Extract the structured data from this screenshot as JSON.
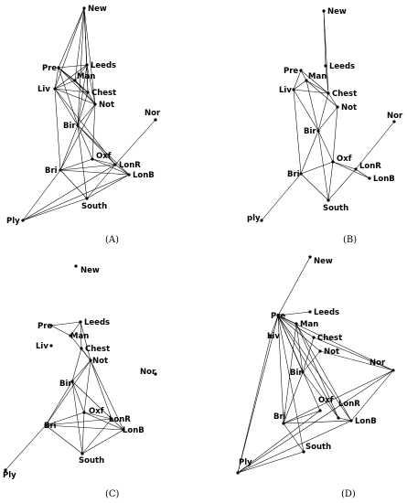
{
  "panels": [
    {
      "id": "A",
      "label": "(A)",
      "nodes": {
        "New": [
          "New"
        ],
        "Leeds": [
          "Leeds"
        ],
        "Pre": [
          "Pre"
        ],
        "Man": [
          "Man"
        ],
        "Liv": [
          "Liv"
        ],
        "Chest": [
          "Chest"
        ],
        "Not": [
          "Not"
        ],
        "Bir": [
          "Bir"
        ],
        "Nor": [
          "Nor"
        ],
        "Oxf": [
          "Oxf"
        ],
        "LonR": [
          "LonR"
        ],
        "LonB": [
          "LonB"
        ],
        "Bri": [
          "Bri"
        ],
        "South": [
          "South"
        ],
        "Ply": [
          "Ply"
        ]
      },
      "edges": [
        [
          "New",
          "Pre"
        ],
        [
          "New",
          "Leeds"
        ],
        [
          "New",
          "Liv"
        ],
        [
          "New",
          "Man"
        ],
        [
          "New",
          "Chest"
        ],
        [
          "New",
          "Not"
        ],
        [
          "New",
          "Bir"
        ],
        [
          "Pre",
          "Leeds"
        ],
        [
          "Pre",
          "Man"
        ],
        [
          "Pre",
          "Liv"
        ],
        [
          "Pre",
          "Chest"
        ],
        [
          "Pre",
          "Not"
        ],
        [
          "Pre",
          "Bir"
        ],
        [
          "Leeds",
          "Man"
        ],
        [
          "Leeds",
          "Liv"
        ],
        [
          "Leeds",
          "Not"
        ],
        [
          "Leeds",
          "Bir"
        ],
        [
          "Leeds",
          "Chest"
        ],
        [
          "Liv",
          "Man"
        ],
        [
          "Liv",
          "Chest"
        ],
        [
          "Liv",
          "Not"
        ],
        [
          "Liv",
          "Bir"
        ],
        [
          "Liv",
          "Bri"
        ],
        [
          "Liv",
          "LonR"
        ],
        [
          "Man",
          "Chest"
        ],
        [
          "Man",
          "Not"
        ],
        [
          "Chest",
          "Not"
        ],
        [
          "Chest",
          "Bir"
        ],
        [
          "Not",
          "Bir"
        ],
        [
          "Not",
          "Bri"
        ],
        [
          "Not",
          "Oxf"
        ],
        [
          "Bir",
          "Bri"
        ],
        [
          "Bir",
          "Oxf"
        ],
        [
          "Bir",
          "LonR"
        ],
        [
          "Bir",
          "LonB"
        ],
        [
          "Bir",
          "South"
        ],
        [
          "Bri",
          "Oxf"
        ],
        [
          "Bri",
          "LonR"
        ],
        [
          "Bri",
          "LonB"
        ],
        [
          "Bri",
          "South"
        ],
        [
          "Bri",
          "Ply"
        ],
        [
          "Oxf",
          "LonR"
        ],
        [
          "Oxf",
          "LonB"
        ],
        [
          "LonR",
          "LonB"
        ],
        [
          "LonR",
          "Nor"
        ],
        [
          "LonR",
          "South"
        ],
        [
          "LonB",
          "South"
        ],
        [
          "Ply",
          "South"
        ],
        [
          "Ply",
          "LonR"
        ],
        [
          "Ply",
          "LonB"
        ]
      ]
    },
    {
      "id": "B",
      "label": "(B)",
      "nodes": {
        "New": [
          "New"
        ],
        "Leeds": [
          "Leeds"
        ],
        "Pre": [
          "Pre"
        ],
        "Man": [
          "Man"
        ],
        "Liv": [
          "Liv"
        ],
        "Chest": [
          "Chest"
        ],
        "Not": [
          "Not"
        ],
        "Bir": [
          "Bir"
        ],
        "Nor": [
          "Nor"
        ],
        "Oxf": [
          "Oxf"
        ],
        "LonR": [
          "LonR"
        ],
        "LonB": [
          "LonB"
        ],
        "Bri": [
          "Bri"
        ],
        "South": [
          "South"
        ],
        "Ply": [
          "ply"
        ]
      },
      "edges": [
        [
          "New",
          "Leeds"
        ],
        [
          "New",
          "Chest"
        ],
        [
          "Leeds",
          "Chest"
        ],
        [
          "Pre",
          "Man"
        ],
        [
          "Pre",
          "Liv"
        ],
        [
          "Pre",
          "Chest"
        ],
        [
          "Man",
          "Chest"
        ],
        [
          "Man",
          "Not"
        ],
        [
          "Man",
          "Bir"
        ],
        [
          "Liv",
          "Chest"
        ],
        [
          "Liv",
          "Bir"
        ],
        [
          "Liv",
          "Bri"
        ],
        [
          "Liv",
          "Man"
        ],
        [
          "Chest",
          "Not"
        ],
        [
          "Chest",
          "Bir"
        ],
        [
          "Not",
          "Bir"
        ],
        [
          "Not",
          "Oxf"
        ],
        [
          "Bir",
          "Bri"
        ],
        [
          "Bir",
          "South"
        ],
        [
          "Bir",
          "Oxf"
        ],
        [
          "Bri",
          "Oxf"
        ],
        [
          "Bri",
          "South"
        ],
        [
          "Bri",
          "Ply"
        ],
        [
          "Oxf",
          "LonR"
        ],
        [
          "Oxf",
          "South"
        ],
        [
          "Oxf",
          "LonB"
        ],
        [
          "LonR",
          "Nor"
        ],
        [
          "LonR",
          "LonB"
        ],
        [
          "LonR",
          "South"
        ]
      ]
    },
    {
      "id": "C",
      "label": "(C)",
      "nodes": {
        "New": [
          "New"
        ],
        "Leeds": [
          "Leeds"
        ],
        "Pre": [
          "Pre"
        ],
        "Man": [
          "Man"
        ],
        "Liv": [
          "Liv"
        ],
        "Chest": [
          "Chest"
        ],
        "Not": [
          "Not"
        ],
        "Bir": [
          "Bir"
        ],
        "Nor": [
          "Nor"
        ],
        "Oxf": [
          "Oxf"
        ],
        "LonR": [
          "LonR"
        ],
        "LonB": [
          "LonB"
        ],
        "Bri": [
          "Bri"
        ],
        "South": [
          "South"
        ],
        "Ply": [
          "Ply"
        ]
      },
      "edges": [
        [
          "Pre",
          "Leeds"
        ],
        [
          "Pre",
          "Man"
        ],
        [
          "Leeds",
          "Man"
        ],
        [
          "Leeds",
          "Not"
        ],
        [
          "Leeds",
          "Chest"
        ],
        [
          "Man",
          "Not"
        ],
        [
          "Chest",
          "Not"
        ],
        [
          "Chest",
          "Bir"
        ],
        [
          "Not",
          "Bir"
        ],
        [
          "Not",
          "Oxf"
        ],
        [
          "Not",
          "LonR"
        ],
        [
          "Not",
          "LonB"
        ],
        [
          "Not",
          "Bri"
        ],
        [
          "Bir",
          "Bri"
        ],
        [
          "Bir",
          "Oxf"
        ],
        [
          "Bir",
          "LonR"
        ],
        [
          "Bir",
          "South"
        ],
        [
          "Bri",
          "Oxf"
        ],
        [
          "Bri",
          "LonR"
        ],
        [
          "Bri",
          "LonB"
        ],
        [
          "Bri",
          "South"
        ],
        [
          "Bri",
          "Ply"
        ],
        [
          "Oxf",
          "LonR"
        ],
        [
          "Oxf",
          "LonB"
        ],
        [
          "Oxf",
          "South"
        ],
        [
          "LonR",
          "LonB"
        ],
        [
          "LonR",
          "South"
        ],
        [
          "LonB",
          "South"
        ]
      ]
    },
    {
      "id": "D",
      "label": "(D)",
      "nodes": {
        "New": [
          "New"
        ],
        "Leeds": [
          "Leeds"
        ],
        "Pre": [
          "Pre"
        ],
        "Man": [
          "Man"
        ],
        "Liv": [
          "Liv"
        ],
        "Chest": [
          "Chest"
        ],
        "Not": [
          "Not"
        ],
        "Bir": [
          "Bir"
        ],
        "Nor": [
          "Nor"
        ],
        "Oxf": [
          "Oxf"
        ],
        "LonR": [
          "LonR"
        ],
        "LonB": [
          "LonB"
        ],
        "Bri": [
          "Bri"
        ],
        "South": [
          "South"
        ],
        "Ply": [
          "Ply"
        ]
      },
      "edges": [
        [
          "New",
          "Pre"
        ],
        [
          "Pre",
          "Leeds"
        ],
        [
          "Pre",
          "Man"
        ],
        [
          "Pre",
          "Liv"
        ],
        [
          "Pre",
          "Chest"
        ],
        [
          "Pre",
          "Not"
        ],
        [
          "Pre",
          "Bir"
        ],
        [
          "Pre",
          "Oxf"
        ],
        [
          "Pre",
          "LonR"
        ],
        [
          "Pre",
          "LonB"
        ],
        [
          "Pre",
          "Nor"
        ],
        [
          "Pre",
          "Bri"
        ],
        [
          "Pre",
          "South"
        ],
        [
          "Pre",
          "Ply"
        ],
        [
          "Man",
          "Bir"
        ],
        [
          "Man",
          "LonR"
        ],
        [
          "Man",
          "LonB"
        ],
        [
          "Man",
          "Bri"
        ],
        [
          "Chest",
          "Bir"
        ],
        [
          "Chest",
          "Nor"
        ],
        [
          "Not",
          "Bir"
        ],
        [
          "Not",
          "Nor"
        ],
        [
          "Bir",
          "Bri"
        ],
        [
          "Bir",
          "LonR"
        ],
        [
          "Bri",
          "Oxf"
        ],
        [
          "Bri",
          "LonB"
        ],
        [
          "Bri",
          "Nor"
        ],
        [
          "Bri",
          "South"
        ],
        [
          "LonR",
          "LonB"
        ],
        [
          "LonB",
          "Nor"
        ],
        [
          "LonB",
          "Ply"
        ],
        [
          "Nor",
          "Ply"
        ],
        [
          "Oxf",
          "Ply"
        ],
        [
          "South",
          "Ply"
        ],
        [
          "Liv",
          "Ply"
        ]
      ]
    }
  ]
}
